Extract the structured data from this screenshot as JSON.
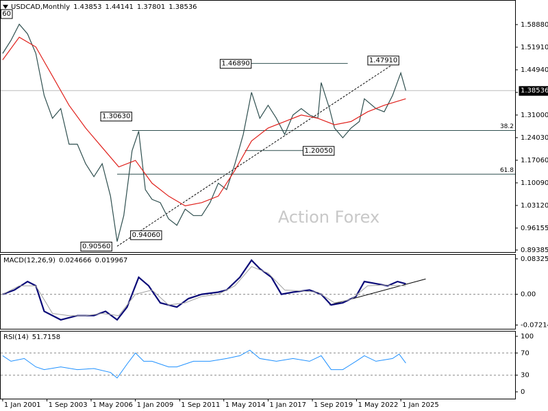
{
  "chart_data": [
    {
      "type": "line",
      "title": "USDCAD,Monthly",
      "ohlc": [
        1.43853,
        1.44141,
        1.37801,
        1.38536
      ],
      "corner_label": "60",
      "watermark": "Action Forex",
      "last_price": 1.38536,
      "xlim": [
        2000.88,
        2031.89
      ],
      "ylim": [
        0.8875,
        1.6625
      ],
      "yticks": [
        {
          "value": 1.5888,
          "label": "1.58880"
        },
        {
          "value": 1.5191,
          "label": "1.51910"
        },
        {
          "value": 1.4494,
          "label": "1.44940"
        },
        {
          "value": 1.3797,
          "label": "1.37970"
        },
        {
          "value": 1.31,
          "label": "1.31000"
        },
        {
          "value": 1.2403,
          "label": "1.24030"
        },
        {
          "value": 1.1706,
          "label": "1.17060"
        },
        {
          "value": 1.1009,
          "label": "1.10090"
        },
        {
          "value": 1.0312,
          "label": "1.03120"
        },
        0.96155,
        0.89385
      ],
      "series": [
        {
          "color": "#2f4f4f",
          "width": 1.2,
          "x": [
            2001.0,
            2001.5,
            2002.0,
            2002.5,
            2003.0,
            2003.5,
            2004.0,
            2004.5,
            2005.0,
            2005.5,
            2006.0,
            2006.5,
            2007.0,
            2007.5,
            2007.9,
            2008.3,
            2008.8,
            2009.2,
            2009.6,
            2010.0,
            2010.5,
            2011.0,
            2011.5,
            2012.0,
            2012.5,
            2013.0,
            2013.5,
            2014.0,
            2014.5,
            2015.0,
            2015.5,
            2016.0,
            2016.5,
            2017.0,
            2017.5,
            2018.0,
            2018.5,
            2019.0,
            2019.5,
            2020.0,
            2020.2,
            2020.7,
            2021.0,
            2021.5,
            2022.0,
            2022.5,
            2022.8,
            2023.5,
            2024.0,
            2024.5,
            2025.0,
            2025.3
          ],
          "values": [
            1.5,
            1.54,
            1.59,
            1.56,
            1.5,
            1.37,
            1.3,
            1.33,
            1.22,
            1.22,
            1.16,
            1.12,
            1.16,
            1.06,
            0.92,
            1.0,
            1.2,
            1.26,
            1.08,
            1.05,
            1.04,
            0.99,
            0.97,
            1.02,
            1.0,
            1.0,
            1.04,
            1.1,
            1.08,
            1.16,
            1.25,
            1.38,
            1.3,
            1.34,
            1.3,
            1.25,
            1.31,
            1.33,
            1.31,
            1.3,
            1.41,
            1.33,
            1.27,
            1.24,
            1.27,
            1.29,
            1.36,
            1.33,
            1.32,
            1.37,
            1.44,
            1.38536
          ]
        },
        {
          "color": "#e0201b",
          "width": 1.2,
          "x": [
            2001.0,
            2002.0,
            2003.0,
            2004.0,
            2005.0,
            2006.0,
            2007.0,
            2008.0,
            2009.0,
            2010.0,
            2011.0,
            2012.0,
            2013.0,
            2014.0,
            2015.0,
            2016.0,
            2017.0,
            2018.0,
            2019.0,
            2020.0,
            2021.0,
            2022.0,
            2023.0,
            2024.0,
            2025.3
          ],
          "values": [
            1.48,
            1.55,
            1.52,
            1.43,
            1.34,
            1.27,
            1.21,
            1.15,
            1.17,
            1.1,
            1.06,
            1.03,
            1.04,
            1.06,
            1.14,
            1.23,
            1.27,
            1.29,
            1.31,
            1.3,
            1.28,
            1.29,
            1.32,
            1.34,
            1.36
          ]
        }
      ],
      "annotations": [
        {
          "label": "1.46890",
          "x": 2015.9,
          "value": 1.4689
        },
        {
          "label": "1.47910",
          "x": 2024.8,
          "value": 1.4791
        },
        {
          "label": "1.30630",
          "x": 2008.7,
          "value": 1.3063
        },
        {
          "label": "1.20050",
          "x": 2020.9,
          "value": 1.2005
        },
        {
          "label": "0.90560",
          "x": 2007.5,
          "value": 0.9056
        },
        {
          "label": "0.94060",
          "x": 2010.5,
          "value": 0.9406
        }
      ],
      "fib_levels": [
        {
          "ratio": 38.2,
          "price": 1.2623,
          "start": 2008.8
        },
        {
          "ratio": 61.8,
          "price": 1.1276,
          "start": 2007.9
        }
      ],
      "lines": [
        {
          "price": 1.4689,
          "x": [
            2015.9,
            2021.8
          ]
        },
        {
          "price": 1.2005,
          "x": [
            2015.6,
            2020.9
          ]
        }
      ],
      "trendline": {
        "x": [
          2007.9,
          2024.9
        ],
        "y": [
          0.9056,
          1.4791
        ]
      }
    },
    {
      "type": "line",
      "label": "MACD(12,26,9)",
      "readout": [
        0.024666,
        0.019967
      ],
      "xlim": [
        2000.88,
        2031.89
      ],
      "ylim": [
        -0.081,
        0.0927
      ],
      "yticks": [
        0.083255,
        {
          "value": 0,
          "label": "0.00"
        },
        -0.072148
      ],
      "dashed_levels": [
        0
      ],
      "series": [
        {
          "color": "#0a0a78",
          "width": 2.2,
          "x": [
            2001.0,
            2001.7,
            2002.5,
            2003.0,
            2003.5,
            2004.5,
            2005.5,
            2006.5,
            2007.2,
            2007.9,
            2008.5,
            2009.2,
            2009.8,
            2010.5,
            2011.5,
            2012.2,
            2013.0,
            2014.0,
            2014.5,
            2015.3,
            2016.0,
            2016.5,
            2017.2,
            2017.8,
            2018.5,
            2019.5,
            2020.2,
            2020.8,
            2021.5,
            2022.3,
            2022.8,
            2023.5,
            2024.2,
            2024.8,
            2025.3
          ],
          "values": [
            0.0,
            0.01,
            0.03,
            0.02,
            -0.04,
            -0.06,
            -0.05,
            -0.05,
            -0.04,
            -0.06,
            -0.03,
            0.04,
            0.02,
            -0.02,
            -0.03,
            -0.01,
            0.0,
            0.005,
            0.01,
            0.04,
            0.08,
            0.06,
            0.04,
            0.0,
            0.005,
            0.01,
            0.0,
            -0.025,
            -0.02,
            -0.005,
            0.03,
            0.025,
            0.02,
            0.03,
            0.024666
          ]
        },
        {
          "color": "#a0a0a0",
          "width": 1,
          "x": [
            2001.0,
            2002.0,
            2003.0,
            2004.0,
            2005.0,
            2006.0,
            2007.0,
            2008.0,
            2009.0,
            2010.0,
            2011.0,
            2012.0,
            2013.0,
            2014.0,
            2015.0,
            2016.0,
            2017.0,
            2018.0,
            2019.0,
            2020.0,
            2021.0,
            2022.0,
            2023.0,
            2024.0,
            2025.3
          ],
          "values": [
            0.0,
            0.02,
            0.02,
            -0.045,
            -0.05,
            -0.05,
            -0.045,
            -0.05,
            0.0,
            0.01,
            -0.025,
            -0.02,
            -0.005,
            0.0,
            0.02,
            0.065,
            0.05,
            0.01,
            0.008,
            0.005,
            -0.02,
            -0.012,
            0.02,
            0.022,
            0.019967
          ]
        }
      ],
      "trendline": {
        "x": [
          2020.7,
          2026.5
        ],
        "y": [
          -0.025,
          0.036
        ]
      }
    },
    {
      "type": "line",
      "label": "RSI(14)",
      "readout": [
        51.7158
      ],
      "xlim": [
        2000.88,
        2031.89
      ],
      "ylim": [
        -12.3,
        108.6
      ],
      "yticks": [
        100,
        70,
        30,
        0
      ],
      "dashed_levels": [
        70,
        30
      ],
      "xticks": [
        {
          "value": 2001.0,
          "label": "1 Jan 2001"
        },
        {
          "value": 2003.67,
          "label": "1 Sep 2003"
        },
        {
          "value": 2006.33,
          "label": "1 May 2006"
        },
        {
          "value": 2009.0,
          "label": "1 Jan 2009"
        },
        {
          "value": 2011.67,
          "label": "1 Sep 2011"
        },
        {
          "value": 2014.33,
          "label": "1 May 2014"
        },
        {
          "value": 2017.0,
          "label": "1 Jan 2017"
        },
        {
          "value": 2019.67,
          "label": "1 Sep 2019"
        },
        {
          "value": 2022.33,
          "label": "1 May 2022"
        },
        {
          "value": 2025.0,
          "label": "1 Jan 2025"
        }
      ],
      "series": [
        {
          "color": "#1e90ff",
          "width": 1,
          "x": [
            2001.0,
            2001.5,
            2002.3,
            2003.0,
            2003.5,
            2004.5,
            2005.5,
            2006.5,
            2007.5,
            2007.9,
            2008.5,
            2009.0,
            2009.5,
            2010.0,
            2011.0,
            2011.5,
            2012.5,
            2013.5,
            2014.5,
            2015.3,
            2015.9,
            2016.5,
            2017.5,
            2018.5,
            2019.5,
            2020.2,
            2020.8,
            2021.5,
            2022.3,
            2022.8,
            2023.5,
            2024.5,
            2024.9,
            2025.3
          ],
          "values": [
            65,
            55,
            60,
            45,
            40,
            45,
            40,
            42,
            35,
            25,
            50,
            70,
            55,
            55,
            45,
            45,
            55,
            55,
            60,
            65,
            75,
            60,
            55,
            60,
            55,
            65,
            40,
            40,
            55,
            65,
            55,
            60,
            68,
            51.7158
          ]
        }
      ]
    }
  ]
}
